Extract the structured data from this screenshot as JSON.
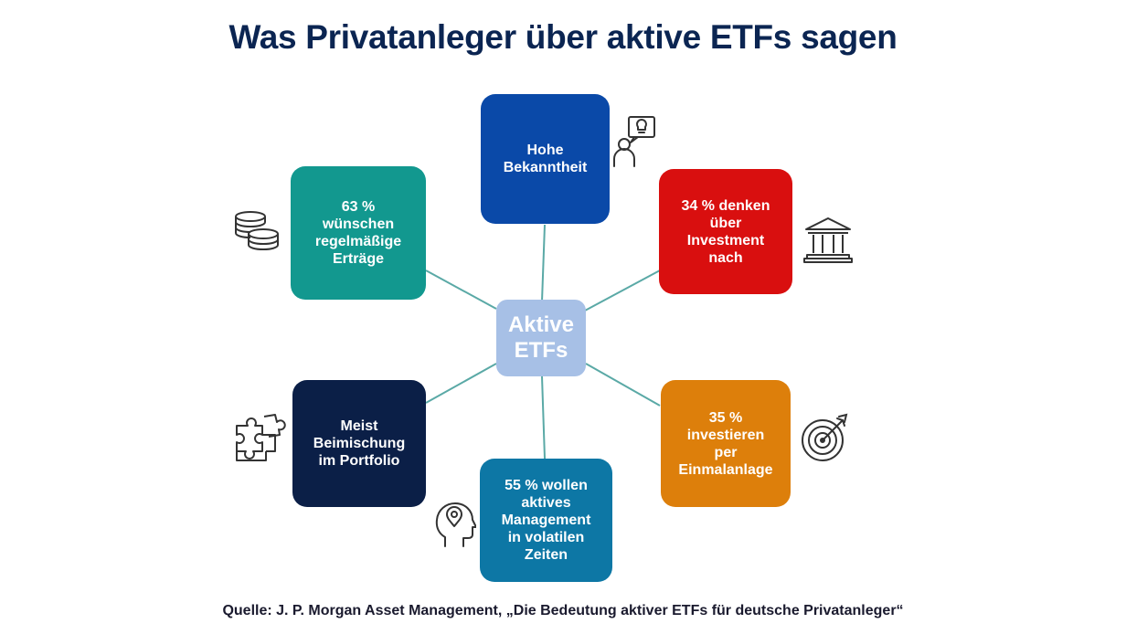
{
  "title": "Was Privatanleger über aktive ETFs sagen",
  "center": {
    "label": "Aktive\nETFs",
    "color": "#a7c0e6"
  },
  "nodes": [
    {
      "id": "top",
      "label": "Hohe\nBekanntheit",
      "color": "#0a49a8",
      "icon": "person-idea-icon"
    },
    {
      "id": "top-right",
      "label": "34 % denken\nüber\nInvestment\nnach",
      "color": "#d90f0f",
      "icon": "bank-icon"
    },
    {
      "id": "bottom-right",
      "label": "35 %\ninvestieren\nper\nEinmalanlage",
      "color": "#dd7f0b",
      "icon": "target-icon"
    },
    {
      "id": "bottom",
      "label": "55 % wollen\naktives\nManagement\nin volatilen\nZeiten",
      "color": "#0d77a5",
      "icon": "head-location-icon"
    },
    {
      "id": "bottom-left",
      "label": "Meist\nBeimischung\nim Portfolio",
      "color": "#0b1f47",
      "icon": "puzzle-icon"
    },
    {
      "id": "top-left",
      "label": "63 %\nwünschen\nregelmäßige\nErträge",
      "color": "#12988f",
      "icon": "coins-icon"
    }
  ],
  "connector_color": "#5aa9a6",
  "title_color": "#0b2552",
  "source": "Quelle: J. P. Morgan Asset Management, „Die Bedeutung aktiver ETFs für deutsche Privatanleger“",
  "source_color": "#1a1a2e"
}
